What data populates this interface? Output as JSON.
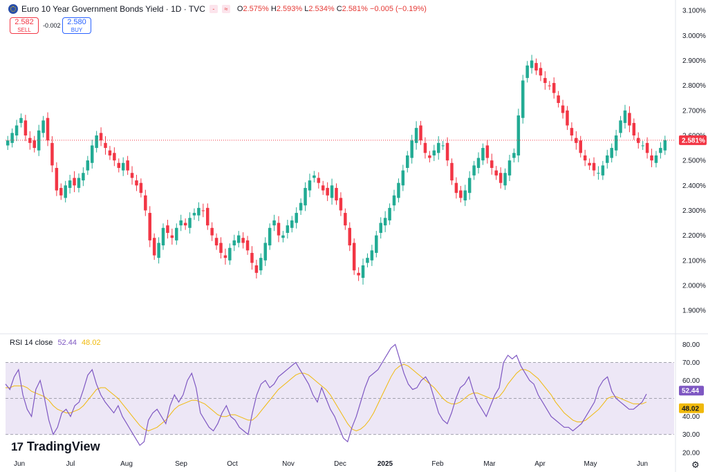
{
  "header": {
    "title": "Euro 10 Year Government Bonds Yield · 1D · TVC",
    "ohlc": {
      "o_label": "O",
      "o_value": "2.575%",
      "h_label": "H",
      "h_value": "2.593%",
      "l_label": "L",
      "l_value": "2.534%",
      "c_label": "C",
      "c_value": "2.581%",
      "change": "−0.005 (−0.19%)"
    },
    "button_icon": "≈"
  },
  "trade": {
    "sell_price": "2.582",
    "sell_label": "SELL",
    "spread": "-0.002",
    "buy_price": "2.580",
    "buy_label": "BUY"
  },
  "rsi_legend": {
    "label": "RSI 14 close",
    "rsi": "52.44",
    "ma": "48.02"
  },
  "branding": {
    "logo_mark": "17",
    "logo_text": "TradingView"
  },
  "colors": {
    "up": "#22ab94",
    "down": "#f23645",
    "rsi": "#7e57c2",
    "rsi_ma": "#f0b90b",
    "rsi_band": "#ede7f6",
    "last_price": "#f23645"
  },
  "chart_data": [
    {
      "type": "candlestick",
      "title": "Euro 10 Year Government Bonds Yield",
      "interval": "1D",
      "source": "TVC",
      "y_unit": "%",
      "ylim": [
        1.82,
        3.12
      ],
      "y_ticks": [
        "3.100%",
        "3.000%",
        "2.900%",
        "2.800%",
        "2.700%",
        "2.600%",
        "2.500%",
        "2.400%",
        "2.300%",
        "2.200%",
        "2.100%",
        "2.000%",
        "1.900%"
      ],
      "y_tick_values": [
        3.1,
        3.0,
        2.9,
        2.8,
        2.7,
        2.6,
        2.5,
        2.4,
        2.3,
        2.2,
        2.1,
        2.0,
        1.9
      ],
      "x_ticks": [
        "Jun",
        "Jul",
        "Aug",
        "Sep",
        "Oct",
        "Nov",
        "Dec",
        "2025",
        "Feb",
        "Mar",
        "Apr",
        "May",
        "Jun"
      ],
      "last_value": 2.581,
      "last_label": "2.581%",
      "closes": [
        2.58,
        2.61,
        2.64,
        2.67,
        2.6,
        2.57,
        2.55,
        2.62,
        2.66,
        2.58,
        2.48,
        2.38,
        2.36,
        2.4,
        2.42,
        2.4,
        2.43,
        2.45,
        2.5,
        2.56,
        2.6,
        2.58,
        2.55,
        2.52,
        2.5,
        2.47,
        2.49,
        2.46,
        2.43,
        2.4,
        2.37,
        2.3,
        2.18,
        2.12,
        2.17,
        2.23,
        2.21,
        2.19,
        2.23,
        2.26,
        2.24,
        2.27,
        2.29,
        2.31,
        2.3,
        2.24,
        2.2,
        2.16,
        2.13,
        2.11,
        2.15,
        2.18,
        2.2,
        2.17,
        2.14,
        2.09,
        2.05,
        2.11,
        2.17,
        2.23,
        2.26,
        2.2,
        2.2,
        2.24,
        2.26,
        2.29,
        2.33,
        2.39,
        2.42,
        2.44,
        2.41,
        2.38,
        2.36,
        2.4,
        2.34,
        2.3,
        2.24,
        2.16,
        2.06,
        2.04,
        2.08,
        2.11,
        2.14,
        2.2,
        2.25,
        2.27,
        2.31,
        2.36,
        2.41,
        2.46,
        2.52,
        2.58,
        2.63,
        2.58,
        2.53,
        2.51,
        2.54,
        2.57,
        2.56,
        2.5,
        2.42,
        2.37,
        2.35,
        2.38,
        2.43,
        2.48,
        2.51,
        2.55,
        2.51,
        2.47,
        2.44,
        2.41,
        2.45,
        2.5,
        2.53,
        2.68,
        2.82,
        2.88,
        2.9,
        2.86,
        2.84,
        2.81,
        2.8,
        2.77,
        2.73,
        2.69,
        2.64,
        2.6,
        2.57,
        2.53,
        2.5,
        2.48,
        2.46,
        2.45,
        2.48,
        2.52,
        2.55,
        2.6,
        2.66,
        2.7,
        2.64,
        2.6,
        2.57,
        2.56,
        2.53,
        2.5,
        2.52,
        2.55,
        2.581
      ],
      "volatility": [
        0.04,
        0.04,
        0.05,
        0.04,
        0.05,
        0.06,
        0.04,
        0.05,
        0.04,
        0.05,
        0.06,
        0.05,
        0.04,
        0.04,
        0.05,
        0.06,
        0.04,
        0.05,
        0.04,
        0.05,
        0.04,
        0.05,
        0.06,
        0.04,
        0.05,
        0.04,
        0.05,
        0.04,
        0.06,
        0.05,
        0.04,
        0.05,
        0.06,
        0.04,
        0.05,
        0.04,
        0.05,
        0.06,
        0.04,
        0.05,
        0.04,
        0.05,
        0.04,
        0.05,
        0.06,
        0.04,
        0.05,
        0.04,
        0.05,
        0.06,
        0.04,
        0.05,
        0.04,
        0.05,
        0.04,
        0.06,
        0.05,
        0.04,
        0.05,
        0.04,
        0.05,
        0.06,
        0.04,
        0.05,
        0.04,
        0.05,
        0.04,
        0.05,
        0.06,
        0.04,
        0.05,
        0.04,
        0.05,
        0.06,
        0.04,
        0.05,
        0.04,
        0.05,
        0.04,
        0.05,
        0.06,
        0.04,
        0.05,
        0.04,
        0.05,
        0.06,
        0.04,
        0.05,
        0.04,
        0.05,
        0.04,
        0.05,
        0.06,
        0.04,
        0.05,
        0.04,
        0.05,
        0.06,
        0.04,
        0.05,
        0.04,
        0.05,
        0.04,
        0.05,
        0.06,
        0.04,
        0.05,
        0.04,
        0.05,
        0.06,
        0.04,
        0.05,
        0.04,
        0.05,
        0.04,
        0.06,
        0.05,
        0.04,
        0.05,
        0.04,
        0.05,
        0.06,
        0.04,
        0.05,
        0.04,
        0.05,
        0.04,
        0.05,
        0.06,
        0.04,
        0.05,
        0.04,
        0.05,
        0.06,
        0.04,
        0.05,
        0.04,
        0.05,
        0.04,
        0.05,
        0.06,
        0.04,
        0.05,
        0.04,
        0.05,
        0.06,
        0.04,
        0.05,
        0.04
      ]
    },
    {
      "type": "line",
      "title": "RSI 14 close",
      "ylim": [
        18,
        84
      ],
      "y_ticks": [
        "80.00",
        "70.00",
        "60.00",
        "40.00",
        "30.00",
        "20.00"
      ],
      "y_tick_values": [
        80,
        70,
        60,
        40,
        30,
        20
      ],
      "bands": [
        30,
        50,
        70
      ],
      "series": [
        {
          "name": "RSI",
          "last_label": "52.44",
          "values": [
            58,
            55,
            62,
            66,
            52,
            44,
            40,
            55,
            60,
            50,
            38,
            30,
            34,
            42,
            44,
            40,
            46,
            48,
            55,
            63,
            66,
            58,
            52,
            48,
            45,
            42,
            46,
            40,
            36,
            32,
            28,
            24,
            26,
            38,
            42,
            44,
            40,
            36,
            46,
            52,
            48,
            52,
            60,
            64,
            56,
            42,
            38,
            34,
            32,
            36,
            42,
            46,
            40,
            38,
            34,
            32,
            30,
            42,
            52,
            58,
            60,
            56,
            58,
            62,
            64,
            66,
            68,
            70,
            66,
            62,
            58,
            52,
            48,
            56,
            50,
            44,
            40,
            34,
            28,
            26,
            34,
            40,
            48,
            56,
            62,
            64,
            66,
            70,
            74,
            78,
            80,
            72,
            64,
            58,
            55,
            56,
            60,
            62,
            58,
            50,
            42,
            38,
            36,
            42,
            50,
            56,
            58,
            62,
            54,
            48,
            44,
            40,
            46,
            52,
            56,
            70,
            74,
            72,
            74,
            68,
            64,
            60,
            58,
            52,
            48,
            44,
            40,
            38,
            36,
            34,
            34,
            32,
            34,
            36,
            40,
            44,
            48,
            56,
            60,
            62,
            54,
            50,
            48,
            46,
            44,
            44,
            46,
            48,
            52.44
          ]
        },
        {
          "name": "RSI-based MA",
          "last_label": "48.02",
          "values": [
            56,
            56,
            57,
            57,
            57,
            56,
            54,
            53,
            52,
            51,
            49,
            46,
            44,
            43,
            42,
            42,
            43,
            44,
            46,
            49,
            52,
            55,
            56,
            56,
            54,
            52,
            50,
            47,
            44,
            41,
            38,
            35,
            33,
            32,
            33,
            34,
            36,
            38,
            41,
            44,
            46,
            47,
            48,
            49,
            49,
            48,
            47,
            45,
            43,
            41,
            40,
            40,
            41,
            41,
            40,
            39,
            38,
            38,
            40,
            43,
            46,
            49,
            52,
            55,
            57,
            59,
            61,
            63,
            64,
            64,
            63,
            61,
            59,
            57,
            55,
            52,
            48,
            44,
            40,
            36,
            33,
            32,
            33,
            35,
            38,
            42,
            47,
            52,
            57,
            62,
            66,
            68,
            69,
            68,
            66,
            64,
            62,
            60,
            58,
            56,
            53,
            50,
            48,
            47,
            47,
            48,
            50,
            52,
            53,
            53,
            52,
            51,
            50,
            50,
            51,
            54,
            58,
            61,
            64,
            66,
            66,
            65,
            63,
            61,
            58,
            55,
            52,
            48,
            45,
            42,
            40,
            38,
            37,
            37,
            38,
            40,
            42,
            44,
            47,
            50,
            51,
            51,
            50,
            49,
            48,
            47,
            47,
            47,
            48.02
          ]
        }
      ]
    }
  ]
}
